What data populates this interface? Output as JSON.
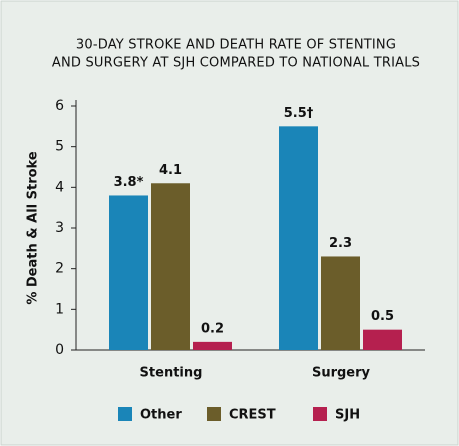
{
  "chart_data": {
    "type": "bar",
    "title_lines": [
      "30-DAY STROKE AND DEATH RATE OF STENTING",
      "AND SURGERY AT SJH COMPARED TO NATIONAL TRIALS"
    ],
    "ylabel": "% Death & All Stroke",
    "categories": [
      "Stenting",
      "Surgery"
    ],
    "series": [
      {
        "name": "Other",
        "color": "#1a85b8",
        "values": [
          3.8,
          5.5
        ],
        "value_labels": [
          "3.8*",
          "5.5†"
        ]
      },
      {
        "name": "CREST",
        "color": "#6b5d2a",
        "values": [
          4.1,
          2.3
        ]
      },
      {
        "name": "SJH",
        "color": "#b5204f",
        "values": [
          0.2,
          0.5
        ]
      }
    ],
    "ylim": [
      0,
      6
    ],
    "yticks": [
      0,
      1,
      2,
      3,
      4,
      5,
      6
    ],
    "legend": "bottom"
  }
}
